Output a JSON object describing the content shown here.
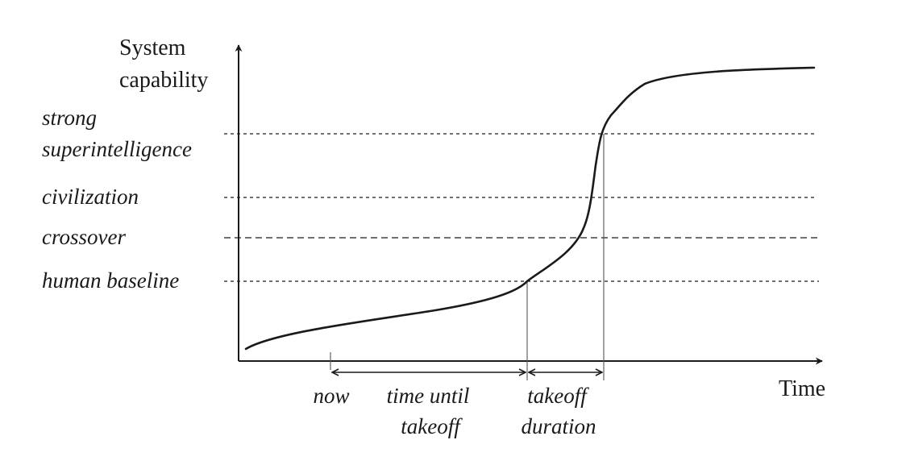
{
  "axes": {
    "y_label_line1": "System",
    "y_label_line2": "capability",
    "x_label": "Time"
  },
  "levels": [
    {
      "key": "strong_superintelligence",
      "lines": [
        "strong",
        "superintelligence"
      ]
    },
    {
      "key": "civilization",
      "lines": [
        "civilization"
      ]
    },
    {
      "key": "crossover",
      "lines": [
        "crossover"
      ]
    },
    {
      "key": "human_baseline",
      "lines": [
        "human baseline"
      ]
    }
  ],
  "markers": {
    "now": "now",
    "time_until_takeoff_line1": "time until",
    "time_until_takeoff_line2": "takeoff",
    "takeoff_duration_line1": "takeoff",
    "takeoff_duration_line2": "duration"
  }
}
